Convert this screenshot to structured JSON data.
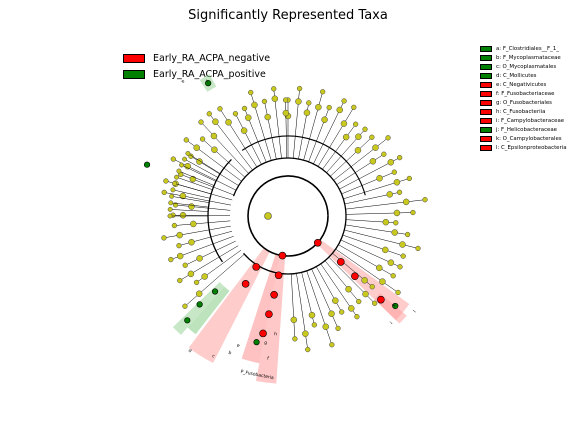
{
  "title": "Significantly Represented Taxa",
  "colors": {
    "negative": "#ff0000",
    "positive": "#008000",
    "neutral": "#c8c81e",
    "negative_shade": "#ff9a9a",
    "positive_shade": "#8fd08f"
  },
  "class_legend": [
    {
      "label": "Early_RA_ACPA_negative",
      "color": "#ff0000"
    },
    {
      "label": "Early_RA_ACPA_positive",
      "color": "#008000"
    }
  ],
  "taxa_legend": [
    {
      "label": "a: F_Clostridiales__F_1_",
      "color": "#008000"
    },
    {
      "label": "b: F_Mycoplasmataceae",
      "color": "#008000"
    },
    {
      "label": "c: O_Mycoplasmatales",
      "color": "#008000"
    },
    {
      "label": "d: C_Mollicutes",
      "color": "#008000"
    },
    {
      "label": "e: C_Negativicutes",
      "color": "#ff0000"
    },
    {
      "label": "f: F_Fusobacteriaceae",
      "color": "#ff0000"
    },
    {
      "label": "g: O_Fusobacteriales",
      "color": "#ff0000"
    },
    {
      "label": "h: C_Fusobacteriia",
      "color": "#ff0000"
    },
    {
      "label": "i: F_Campylobacteraceae",
      "color": "#ff0000"
    },
    {
      "label": "j: F_Helicobacteraceae",
      "color": "#008000"
    },
    {
      "label": "k: O_Campylobacterales",
      "color": "#ff0000"
    },
    {
      "label": "l: C_Epsilonproteobacteria",
      "color": "#ff0000"
    }
  ],
  "sector_labels": [
    "a",
    "b",
    "c",
    "d",
    "e",
    "f",
    "g",
    "h",
    "i",
    "j",
    "k",
    "l",
    "P_Fusobacteria"
  ]
}
